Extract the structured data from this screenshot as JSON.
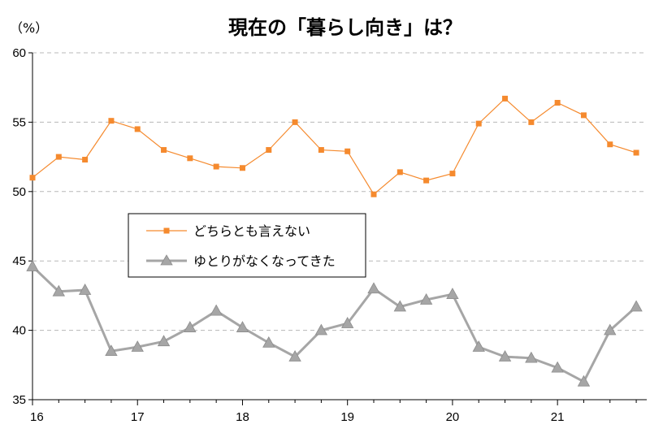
{
  "chart_data": {
    "type": "line",
    "title": "現在の「暮らし向き」は？",
    "unit_label": "（%）",
    "ylim": [
      35,
      60
    ],
    "yticks": [
      35,
      40,
      45,
      50,
      55,
      60
    ],
    "xlim": [
      16,
      21.85
    ],
    "xticks": [
      "16",
      "17",
      "18",
      "19",
      "20",
      "21"
    ],
    "grid": "horizontal dashed",
    "legend_position": "center-left",
    "series": [
      {
        "name": "どちらとも言えない",
        "color": "#F58A2E",
        "marker": "square",
        "x": [
          16.0,
          16.25,
          16.5,
          16.75,
          17.0,
          17.25,
          17.5,
          17.75,
          18.0,
          18.25,
          18.5,
          18.75,
          19.0,
          19.25,
          19.5,
          19.75,
          20.0,
          20.25,
          20.5,
          20.75,
          21.0,
          21.25,
          21.5,
          21.75
        ],
        "values": [
          51.0,
          52.5,
          52.3,
          55.1,
          54.5,
          53.0,
          52.4,
          51.8,
          51.7,
          53.0,
          55.0,
          53.0,
          52.9,
          49.8,
          51.4,
          50.8,
          51.3,
          54.9,
          56.7,
          55.0,
          56.4,
          55.5,
          53.4,
          52.8
        ]
      },
      {
        "name": "ゆとりがなくなってきた",
        "color": "#A6A6A6",
        "marker": "triangle",
        "x": [
          16.0,
          16.25,
          16.5,
          16.75,
          17.0,
          17.25,
          17.5,
          17.75,
          18.0,
          18.25,
          18.5,
          18.75,
          19.0,
          19.25,
          19.5,
          19.75,
          20.0,
          20.25,
          20.5,
          20.75,
          21.0,
          21.25,
          21.5,
          21.75
        ],
        "values": [
          44.6,
          42.8,
          42.9,
          38.5,
          38.8,
          39.2,
          40.2,
          41.4,
          40.2,
          39.1,
          38.1,
          40.0,
          40.5,
          43.0,
          41.7,
          42.2,
          42.6,
          38.8,
          38.1,
          38.0,
          37.3,
          36.3,
          40.0,
          41.7
        ]
      }
    ]
  }
}
